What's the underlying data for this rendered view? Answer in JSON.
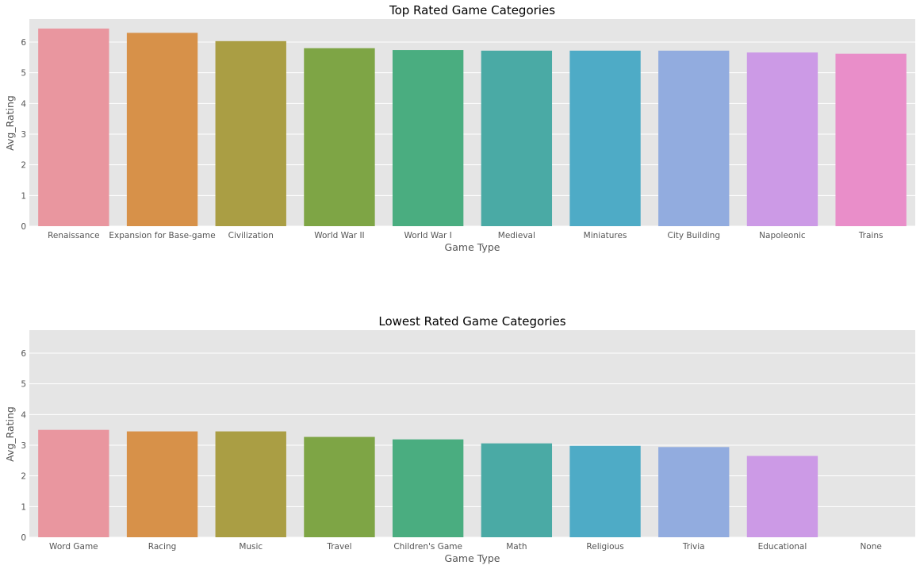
{
  "chart_data": [
    {
      "type": "bar",
      "title": "Top Rated Game Categories",
      "xlabel": "Game Type",
      "ylabel": "Avg_Rating",
      "categories": [
        "Renaissance",
        "Expansion for Base-game",
        "Civilization",
        "World War II",
        "World War I",
        "Medieval",
        "Miniatures",
        "City Building",
        "Napoleonic",
        "Trains"
      ],
      "values": [
        6.44,
        6.3,
        6.03,
        5.8,
        5.74,
        5.72,
        5.72,
        5.72,
        5.66,
        5.62
      ],
      "ylim": [
        0,
        6.75
      ],
      "yticks": [
        "0",
        "1",
        "2",
        "3",
        "4",
        "5",
        "6"
      ],
      "grid": true,
      "colors": [
        "#e9969f",
        "#d79149",
        "#aa9e44",
        "#7ea545",
        "#4aad80",
        "#4aaaa5",
        "#4eabc6",
        "#92acdf",
        "#cc9ae6",
        "#e98ec9"
      ]
    },
    {
      "type": "bar",
      "title": "Lowest Rated Game Categories",
      "xlabel": "Game Type",
      "ylabel": "Avg_Rating",
      "categories": [
        "Word Game",
        "Racing",
        "Music",
        "Travel",
        "Children's Game",
        "Math",
        "Religious",
        "Trivia",
        "Educational",
        "None"
      ],
      "values": [
        3.5,
        3.45,
        3.45,
        3.27,
        3.19,
        3.06,
        2.98,
        2.94,
        2.65,
        null
      ],
      "ylim": [
        0,
        6.75
      ],
      "yticks": [
        "0",
        "1",
        "2",
        "3",
        "4",
        "5",
        "6"
      ],
      "grid": true,
      "colors": [
        "#e9969f",
        "#d79149",
        "#aa9e44",
        "#7ea545",
        "#4aad80",
        "#4aaaa5",
        "#4eabc6",
        "#92acdf",
        "#cc9ae6",
        "#e98ec9"
      ]
    }
  ]
}
